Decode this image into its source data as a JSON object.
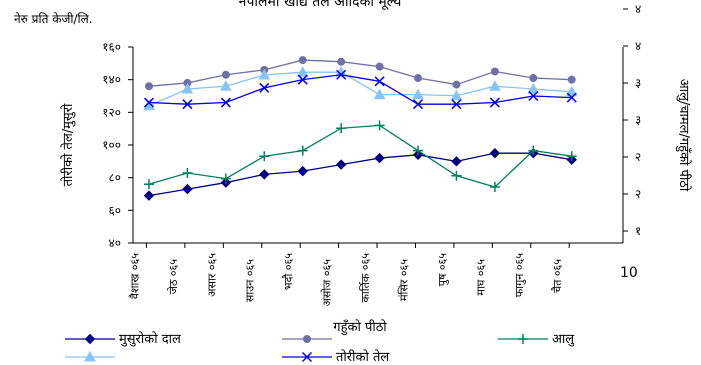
{
  "chart_data": {
    "type": "line",
    "title": "नेपालमा खाद्य तेल आदिको मूल्य",
    "unit_label": "नेरु प्रति केजी/लि.",
    "categories": [
      "वैशाख ०६५",
      "जेठ ०६५",
      "असार ०६५",
      "साउन ०६५",
      "भदौ ०६५",
      "असोज ०६५",
      "कार्तिक ०६५",
      "मंसिर ०६५",
      "पुष ०६५",
      "माघ ०६५",
      "फागुन ०६५",
      "चैत ०६५"
    ],
    "left_axis": {
      "label": "तोरीको तेल/मुसुरो",
      "ylim": [
        40,
        160
      ],
      "ticks": [
        "४०",
        "६०",
        "८०",
        "१००",
        "१२०",
        "१४०",
        "१६०"
      ]
    },
    "right_axis": {
      "label": "आलु/चामल/गहुँको पीठो",
      "ylim": [
        10,
        45
      ],
      "ticks": [
        "१",
        "२",
        "२",
        "३",
        "३",
        "४",
        "४"
      ]
    },
    "x_extra_label": "10",
    "series": [
      {
        "name": "मुसुरोको दाल",
        "axis": "left",
        "color": "#000080",
        "marker": "diamond",
        "values": [
          69,
          73,
          77,
          82,
          84,
          88,
          92,
          94,
          90,
          95,
          95,
          91
        ]
      },
      {
        "name": "गहुँको पीठो",
        "axis": "left",
        "color": "#7070a8",
        "marker": "circle",
        "values": [
          136,
          138,
          143,
          146,
          152,
          151,
          148,
          141,
          137,
          145,
          141,
          140
        ]
      },
      {
        "name": "आलु",
        "axis": "right",
        "color": "#008060",
        "marker": "plus",
        "values": [
          20.5,
          22.5,
          21.5,
          25.5,
          26.5,
          30.5,
          31,
          26.5,
          22,
          20,
          26.5,
          25.5
        ]
      },
      {
        "name": "",
        "axis": "right",
        "color": "#87c4f5",
        "marker": "triangle",
        "values": [
          34.5,
          37.5,
          38,
          40,
          40.5,
          40.5,
          36.5,
          36.5,
          36.3,
          38,
          37.5,
          37
        ]
      },
      {
        "name": "तोरीको तेल",
        "axis": "left",
        "color": "#0000ee",
        "marker": "x",
        "values": [
          126,
          125,
          126,
          135,
          140,
          143,
          139,
          125,
          125,
          126,
          130,
          129
        ]
      }
    ]
  }
}
